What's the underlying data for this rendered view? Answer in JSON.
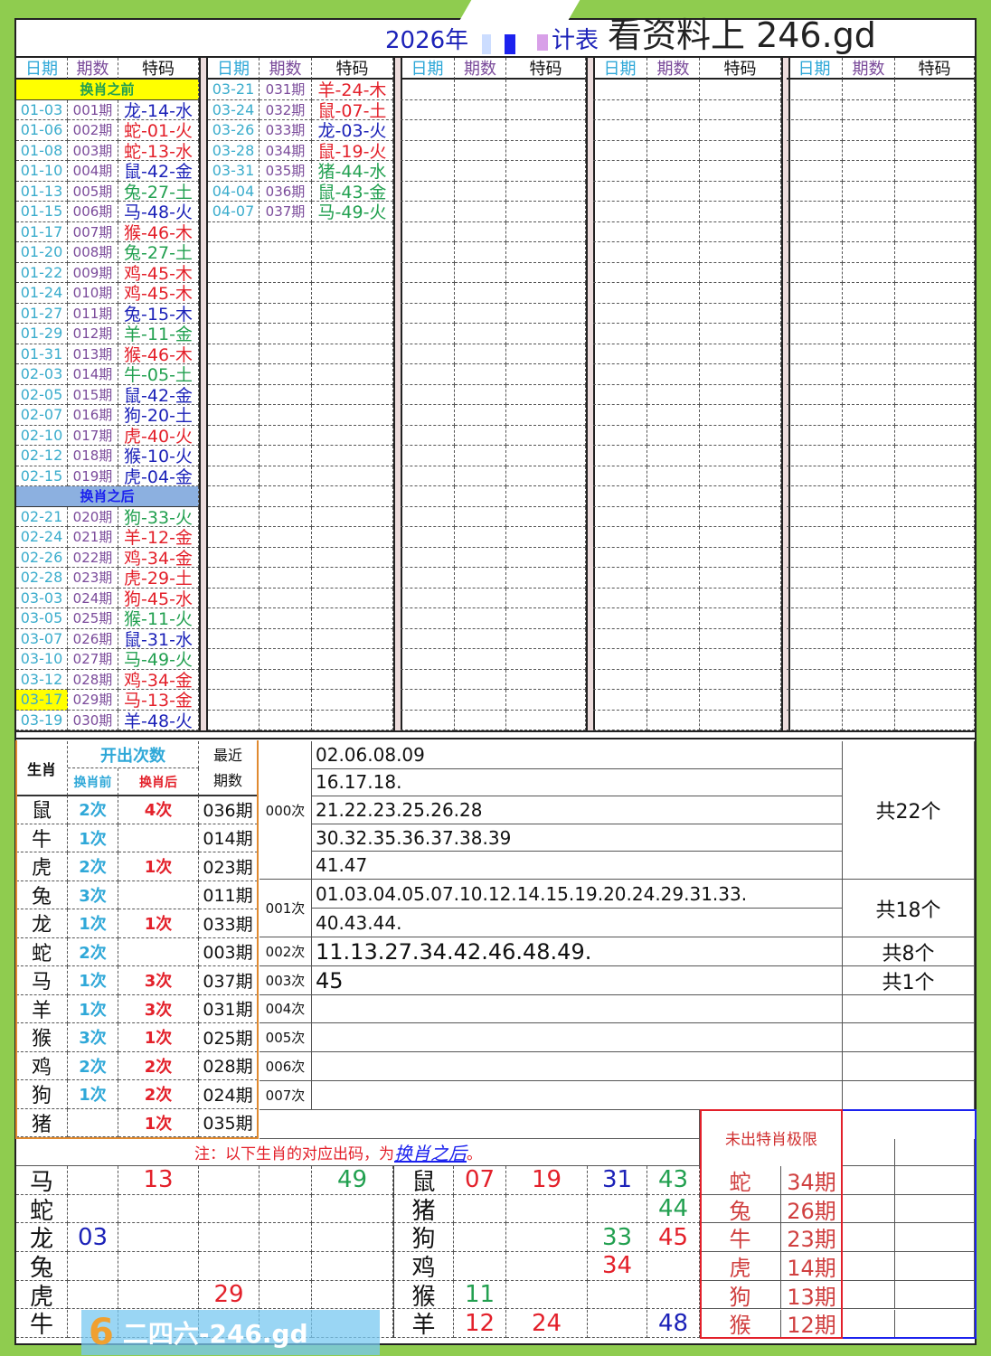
{
  "title": {
    "part1": "2026年",
    "part2": "计表",
    "watermark": "看资料上 246.gd"
  },
  "headers": [
    "日期",
    "期数",
    "特码"
  ],
  "banners": {
    "before": "换肖之前",
    "after": "换肖之后"
  },
  "colors": {
    "red": "#e3202a",
    "blue": "#1c22b8",
    "green": "#22a050",
    "frame": "#8fcc4f",
    "banner_before": "#ffff00",
    "banner_after": "#8cb0e0",
    "highlight": "#ffff00"
  },
  "group1_before": [
    [
      "01-03",
      "001期",
      "龙-14-水",
      "blue"
    ],
    [
      "01-06",
      "002期",
      "蛇-01-火",
      "red"
    ],
    [
      "01-08",
      "003期",
      "蛇-13-水",
      "red"
    ],
    [
      "01-10",
      "004期",
      "鼠-42-金",
      "blue"
    ],
    [
      "01-13",
      "005期",
      "兔-27-土",
      "green"
    ],
    [
      "01-15",
      "006期",
      "马-48-火",
      "blue"
    ],
    [
      "01-17",
      "007期",
      "猴-46-木",
      "red"
    ],
    [
      "01-20",
      "008期",
      "兔-27-土",
      "green"
    ],
    [
      "01-22",
      "009期",
      "鸡-45-木",
      "red"
    ],
    [
      "01-24",
      "010期",
      "鸡-45-木",
      "red"
    ],
    [
      "01-27",
      "011期",
      "兔-15-木",
      "blue"
    ],
    [
      "01-29",
      "012期",
      "羊-11-金",
      "green"
    ],
    [
      "01-31",
      "013期",
      "猴-46-木",
      "red"
    ],
    [
      "02-03",
      "014期",
      "牛-05-土",
      "green"
    ],
    [
      "02-05",
      "015期",
      "鼠-42-金",
      "blue"
    ],
    [
      "02-07",
      "016期",
      "狗-20-土",
      "blue"
    ],
    [
      "02-10",
      "017期",
      "虎-40-火",
      "red"
    ],
    [
      "02-12",
      "018期",
      "猴-10-火",
      "blue"
    ],
    [
      "02-15",
      "019期",
      "虎-04-金",
      "blue"
    ]
  ],
  "group1_after": [
    [
      "02-21",
      "020期",
      "狗-33-火",
      "green"
    ],
    [
      "02-24",
      "021期",
      "羊-12-金",
      "red"
    ],
    [
      "02-26",
      "022期",
      "鸡-34-金",
      "red"
    ],
    [
      "02-28",
      "023期",
      "虎-29-土",
      "red"
    ],
    [
      "03-03",
      "024期",
      "狗-45-水",
      "red"
    ],
    [
      "03-05",
      "025期",
      "猴-11-火",
      "green"
    ],
    [
      "03-07",
      "026期",
      "鼠-31-水",
      "blue"
    ],
    [
      "03-10",
      "027期",
      "马-49-火",
      "green"
    ],
    [
      "03-12",
      "028期",
      "鸡-34-金",
      "red"
    ],
    [
      "03-17",
      "029期",
      "马-13-金",
      "red",
      "highlight"
    ],
    [
      "03-19",
      "030期",
      "羊-48-火",
      "blue"
    ]
  ],
  "group2": [
    [
      "03-21",
      "031期",
      "羊-24-木",
      "red"
    ],
    [
      "03-24",
      "032期",
      "鼠-07-土",
      "red"
    ],
    [
      "03-26",
      "033期",
      "龙-03-火",
      "blue"
    ],
    [
      "03-28",
      "034期",
      "鼠-19-火",
      "red"
    ],
    [
      "03-31",
      "035期",
      "猪-44-水",
      "green"
    ],
    [
      "04-04",
      "036期",
      "鼠-43-金",
      "green"
    ],
    [
      "04-07",
      "037期",
      "马-49-火",
      "green"
    ]
  ],
  "stats": {
    "header": {
      "zodiac": "生肖",
      "count": "开出次数",
      "before": "换肖前",
      "after": "换肖后",
      "recent": "最近期数"
    },
    "rows": [
      [
        "鼠",
        "2次",
        "4次",
        "036期"
      ],
      [
        "牛",
        "1次",
        "",
        "014期"
      ],
      [
        "虎",
        "2次",
        "1次",
        "023期"
      ],
      [
        "兔",
        "3次",
        "",
        "011期"
      ],
      [
        "龙",
        "1次",
        "1次",
        "033期"
      ],
      [
        "蛇",
        "2次",
        "",
        "003期"
      ],
      [
        "马",
        "1次",
        "3次",
        "037期"
      ],
      [
        "羊",
        "1次",
        "3次",
        "031期"
      ],
      [
        "猴",
        "3次",
        "1次",
        "025期"
      ],
      [
        "鸡",
        "2次",
        "2次",
        "028期"
      ],
      [
        "狗",
        "1次",
        "2次",
        "024期"
      ],
      [
        "猪",
        "",
        "1次",
        "035期"
      ]
    ]
  },
  "freq": [
    {
      "label": "000次",
      "lines": [
        "02.06.08.09",
        "16.17.18.",
        "21.22.23.25.26.28",
        "30.32.35.36.37.38.39",
        "41.47"
      ],
      "total": "共22个"
    },
    {
      "label": "001次",
      "lines": [
        "01.03.04.05.07.10.12.14.15.19.20.24.29.31.33.",
        "40.43.44."
      ],
      "total": "共18个"
    },
    {
      "label": "002次",
      "lines": [
        "11.13.27.34.42.46.48.49."
      ],
      "total": "共8个"
    },
    {
      "label": "003次",
      "lines": [
        "45"
      ],
      "total": "共1个"
    },
    {
      "label": "004次",
      "lines": [],
      "total": ""
    },
    {
      "label": "005次",
      "lines": [],
      "total": ""
    },
    {
      "label": "006次",
      "lines": [],
      "total": ""
    },
    {
      "label": "007次",
      "lines": [],
      "total": ""
    }
  ],
  "note": {
    "prefix": "注：以下生肖的对应出码，为",
    "link": "换肖之后",
    "suffix": "。"
  },
  "bottom_left": [
    {
      "z": "马",
      "cells": [
        "",
        "13",
        "",
        "",
        "49"
      ],
      "colors": [
        "",
        "red",
        "",
        "",
        "green"
      ]
    },
    {
      "z": "蛇",
      "cells": [
        "",
        "",
        "",
        "",
        ""
      ],
      "colors": [
        "",
        "",
        "",
        "",
        ""
      ]
    },
    {
      "z": "龙",
      "cells": [
        "03",
        "",
        "",
        "",
        ""
      ],
      "colors": [
        "blue",
        "",
        "",
        "",
        ""
      ]
    },
    {
      "z": "兔",
      "cells": [
        "",
        "",
        "",
        "",
        ""
      ],
      "colors": [
        "",
        "",
        "",
        "",
        ""
      ]
    },
    {
      "z": "虎",
      "cells": [
        "",
        "",
        "29",
        "",
        ""
      ],
      "colors": [
        "",
        "",
        "red",
        "",
        ""
      ]
    },
    {
      "z": "牛",
      "cells": [
        "",
        "",
        "",
        "",
        ""
      ],
      "colors": [
        "",
        "",
        "",
        "",
        ""
      ]
    }
  ],
  "bottom_right": [
    {
      "z": "鼠",
      "cells": [
        "07",
        "19",
        "31",
        "43"
      ],
      "colors": [
        "red",
        "red",
        "blue",
        "green"
      ]
    },
    {
      "z": "猪",
      "cells": [
        "",
        "",
        "",
        "44"
      ],
      "colors": [
        "",
        "",
        "",
        "green"
      ]
    },
    {
      "z": "狗",
      "cells": [
        "",
        "",
        "33",
        "45"
      ],
      "colors": [
        "",
        "",
        "green",
        "red"
      ]
    },
    {
      "z": "鸡",
      "cells": [
        "",
        "",
        "34",
        ""
      ],
      "colors": [
        "",
        "",
        "red",
        ""
      ]
    },
    {
      "z": "猴",
      "cells": [
        "11",
        "",
        "",
        ""
      ],
      "colors": [
        "green",
        "",
        "",
        ""
      ]
    },
    {
      "z": "羊",
      "cells": [
        "12",
        "24",
        "",
        "48"
      ],
      "colors": [
        "red",
        "red",
        "",
        "blue"
      ]
    }
  ],
  "limit": {
    "title": "未出特肖极限",
    "rows": [
      [
        "蛇",
        "34期"
      ],
      [
        "兔",
        "26期"
      ],
      [
        "牛",
        "23期"
      ],
      [
        "虎",
        "14期"
      ],
      [
        "狗",
        "13期"
      ],
      [
        "猴",
        "12期"
      ]
    ]
  },
  "logo": {
    "text": "二四六-246.gd"
  }
}
